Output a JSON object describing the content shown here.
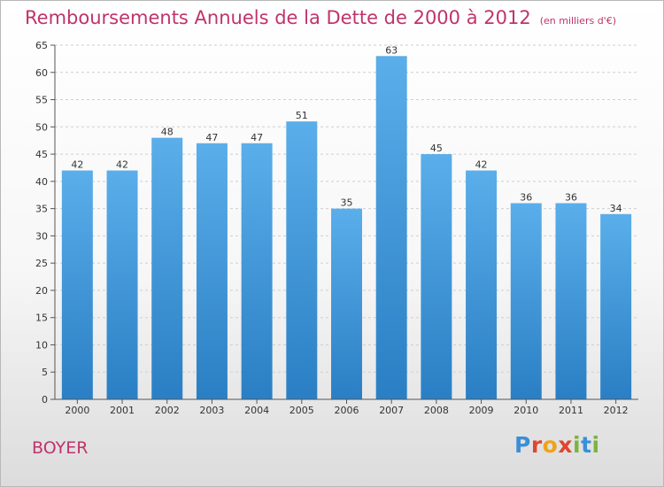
{
  "chart_data": {
    "type": "bar",
    "title": "Remboursements Annuels de la Dette de 2000 à 2012",
    "subtitle": "(en milliers d'€)",
    "categories": [
      "2000",
      "2001",
      "2002",
      "2003",
      "2004",
      "2005",
      "2006",
      "2007",
      "2008",
      "2009",
      "2010",
      "2011",
      "2012"
    ],
    "values": [
      42,
      42,
      48,
      47,
      47,
      51,
      35,
      63,
      45,
      42,
      36,
      36,
      34
    ],
    "ylim": [
      0,
      65
    ],
    "ytick_step": 5,
    "grid": "horizontal-dashed",
    "bar_color_top": "#5aaeea",
    "bar_color_bottom": "#2a7fc4"
  },
  "location": "BOYER",
  "brand": {
    "letters": [
      {
        "char": "P",
        "color": "#3a8fd6"
      },
      {
        "char": "r",
        "color": "#e0452f"
      },
      {
        "char": "o",
        "color": "#f0a21a"
      },
      {
        "char": "x",
        "color": "#e0452f"
      },
      {
        "char": "i",
        "color": "#7cb342"
      },
      {
        "char": "t",
        "color": "#3a8fd6"
      },
      {
        "char": "i",
        "color": "#7cb342"
      }
    ]
  }
}
